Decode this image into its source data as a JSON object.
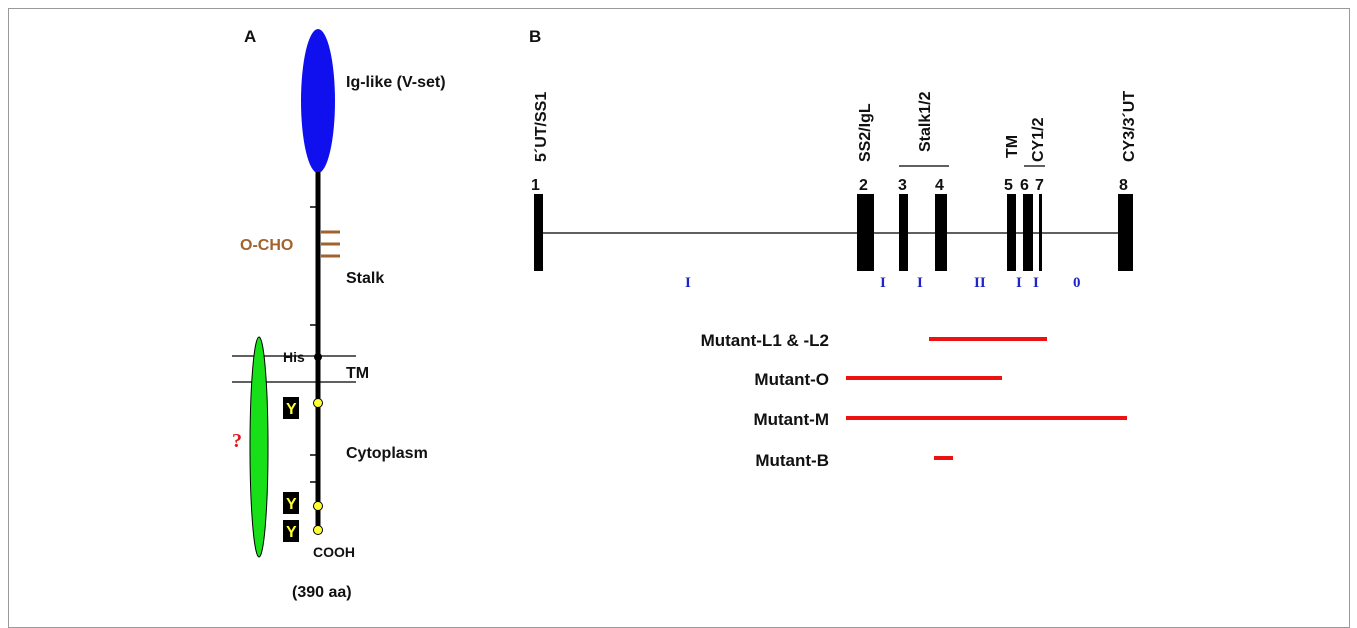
{
  "panel_a": {
    "label": "A",
    "domain_label": "Ig-like (V-set)",
    "glyco_label": "O-CHO",
    "stalk_label": "Stalk",
    "his_label": "His",
    "tm_label": "TM",
    "question_mark": "?",
    "cytoplasm_label": "Cytoplasm",
    "tyrosine_label": "Y",
    "cooh_label": "COOH",
    "length_label": "(390 aa)"
  },
  "panel_b": {
    "label": "B",
    "exon_names": {
      "e1": "5´UT/SS1",
      "e2": "SS2/IgL",
      "stalk": "Stalk1/2",
      "tm": "TM",
      "cy12": "CY1/2",
      "e8": "CY3/3´UT"
    },
    "exon_numbers": [
      "1",
      "2",
      "3",
      "4",
      "5",
      "6",
      "7",
      "8"
    ],
    "intron_phases": [
      "I",
      "I",
      "I",
      "II",
      "I",
      "I",
      "0"
    ],
    "mutants": [
      "Mutant-L1 & -L2",
      "Mutant-O",
      "Mutant-M",
      "Mutant-B"
    ]
  },
  "colors": {
    "ig_domain": "#1010ee",
    "cytoplasm_partner": "#18e018",
    "glyco": "#a0632e",
    "mutant_bar": "#ee1111",
    "tyrosine_dot": "#ffff33",
    "intron_phase_text": "#1f24c8"
  }
}
